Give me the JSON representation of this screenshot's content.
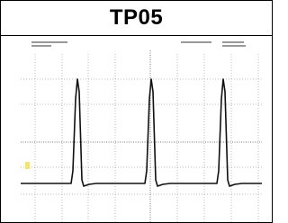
{
  "title": "TP05"
}
